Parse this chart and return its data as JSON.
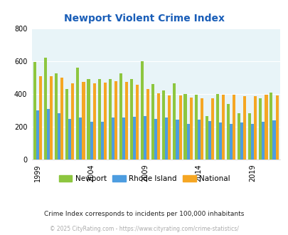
{
  "title": "Newport Violent Crime Index",
  "years": [
    1999,
    2000,
    2001,
    2002,
    2003,
    2004,
    2005,
    2006,
    2007,
    2008,
    2009,
    2010,
    2011,
    2012,
    2013,
    2014,
    2015,
    2016,
    2017,
    2018,
    2019,
    2020,
    2021
  ],
  "newport": [
    595,
    620,
    525,
    430,
    560,
    490,
    490,
    490,
    525,
    490,
    600,
    460,
    420,
    465,
    400,
    395,
    265,
    400,
    340,
    285,
    285,
    375,
    410
  ],
  "rhode_island": [
    300,
    310,
    285,
    250,
    255,
    230,
    230,
    255,
    255,
    260,
    265,
    250,
    255,
    245,
    220,
    245,
    235,
    225,
    220,
    225,
    220,
    230,
    240
  ],
  "national": [
    510,
    510,
    500,
    465,
    475,
    465,
    470,
    480,
    475,
    455,
    430,
    405,
    390,
    390,
    380,
    375,
    375,
    395,
    395,
    385,
    385,
    395,
    390
  ],
  "newport_color": "#8dc63f",
  "rhode_island_color": "#4d9de0",
  "national_color": "#f5a623",
  "bg_color": "#e8f4f8",
  "ylim": [
    0,
    800
  ],
  "yticks": [
    0,
    200,
    400,
    600,
    800
  ],
  "xtick_years": [
    1999,
    2004,
    2009,
    2014,
    2019
  ],
  "subtitle": "Crime Index corresponds to incidents per 100,000 inhabitants",
  "footer": "© 2025 CityRating.com - https://www.cityrating.com/crime-statistics/",
  "title_color": "#1a5eb8",
  "subtitle_color": "#222222",
  "footer_color": "#aaaaaa"
}
